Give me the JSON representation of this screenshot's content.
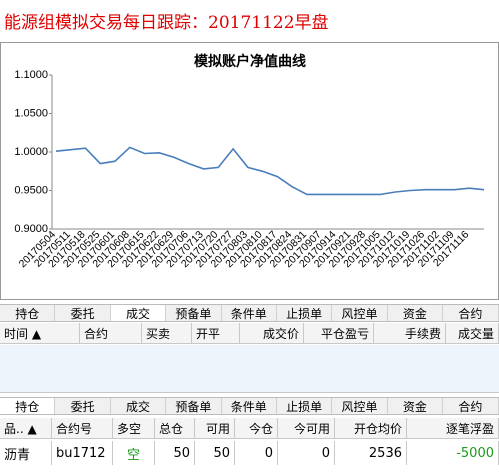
{
  "header": {
    "title": "能源组模拟交易每日跟踪：20171122早盘"
  },
  "chart_data": {
    "type": "line",
    "title": "模拟账户净值曲线",
    "categories": [
      "20170504",
      "20170511",
      "20170518",
      "20170525",
      "20170601",
      "20170608",
      "20170615",
      "20170622",
      "20170629",
      "20170706",
      "20170713",
      "20170720",
      "20170727",
      "20170803",
      "20170810",
      "20170817",
      "20170824",
      "20170831",
      "20170907",
      "20170914",
      "20170921",
      "20170928",
      "20171005",
      "20171012",
      "20171019",
      "20171026",
      "20171102",
      "20171109",
      "20171116",
      null
    ],
    "series": [
      {
        "name": "净值",
        "color": "#4a7ebb",
        "values": [
          1.001,
          1.003,
          1.005,
          0.985,
          0.988,
          1.006,
          0.998,
          0.999,
          0.993,
          0.985,
          0.978,
          0.98,
          1.004,
          0.98,
          0.975,
          0.968,
          0.955,
          0.945,
          0.945,
          0.945,
          0.945,
          0.945,
          0.945,
          0.948,
          0.95,
          0.951,
          0.951,
          0.951,
          0.953,
          0.951
        ]
      }
    ],
    "ylim": [
      0.9,
      1.1
    ],
    "yticks": [
      {
        "value": 0.9,
        "label": "0.9000"
      },
      {
        "value": 0.95,
        "label": "0.9500"
      },
      {
        "value": 1.0,
        "label": "1.0000"
      },
      {
        "value": 1.05,
        "label": "1.0500"
      },
      {
        "value": 1.1,
        "label": "1.1000"
      }
    ],
    "grid": false
  },
  "trade_panel": {
    "tabs": [
      "持仓",
      "委托",
      "成交",
      "预备单",
      "条件单",
      "止损单",
      "风控单",
      "资金",
      "合约"
    ],
    "columns": [
      "时间 ▲",
      "合约",
      "买卖",
      "开平",
      "成交价",
      "平仓盈亏",
      "手续费",
      "成交量"
    ]
  },
  "position_panel": {
    "tabs": [
      "持仓",
      "委托",
      "成交",
      "预备单",
      "条件单",
      "止损单",
      "风控单",
      "资金",
      "合约"
    ],
    "columns": [
      "品.. ▲",
      "合约号",
      "多空",
      "总仓",
      "可用",
      "今仓",
      "今可用",
      "开仓均价",
      "逐笔浮盈"
    ],
    "rows": [
      [
        "沥青",
        "bu1712",
        "空",
        50,
        50,
        0,
        0,
        2536,
        -5000
      ]
    ]
  }
}
